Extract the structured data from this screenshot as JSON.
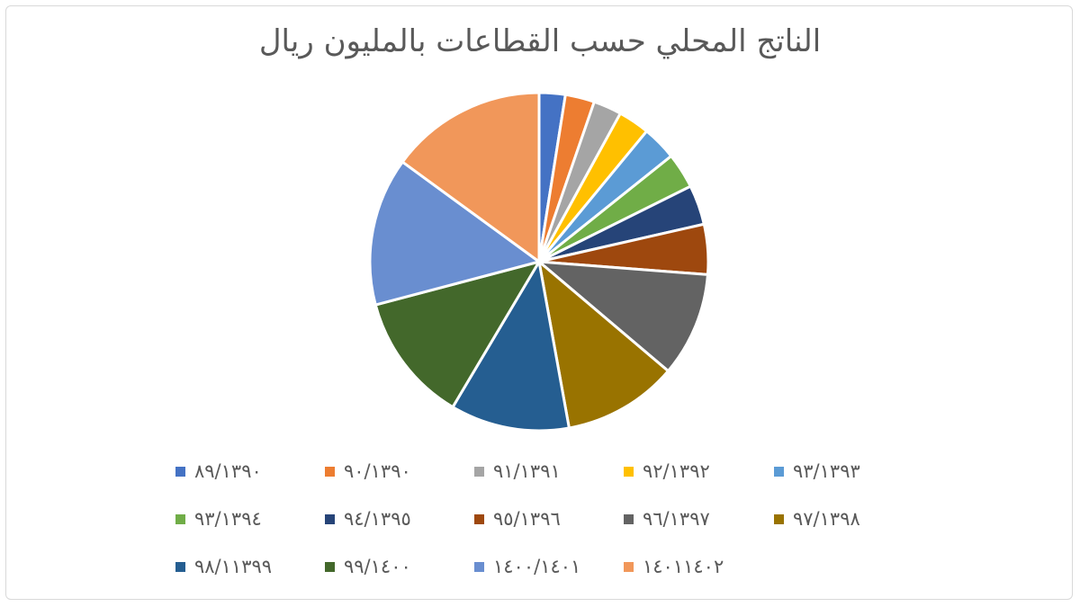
{
  "chart_data": {
    "type": "pie",
    "title": "الناتج المحلي حسب القطاعات بالمليون ريال",
    "legend_position": "bottom",
    "categories": [
      "٨٩/١٣٩٠",
      "٩٠/١٣٩٠",
      "٩١/١٣٩١",
      "٩٢/١٣٩٢",
      "٩٣/١٣٩٣",
      "٩٣/١٣٩٤",
      "٩٤/١٣٩٥",
      "٩٥/١٣٩٦",
      "٩٦/١٣٩٧",
      "٩٧/١٣٩٨",
      "٩٨/١١٣٩٩",
      "٩٩/١٤٠٠",
      "١٤٠٠/١٤٠١",
      "١٤٠١١٤٠٢"
    ],
    "values": [
      2.5,
      2.8,
      2.7,
      3.0,
      3.3,
      3.4,
      3.8,
      4.8,
      10.0,
      11.0,
      11.4,
      12.4,
      14.2,
      15.0
    ],
    "colors": [
      "#4472C4",
      "#ED7D31",
      "#A5A5A5",
      "#FFC000",
      "#5B9BD5",
      "#70AD47",
      "#264478",
      "#9E480E",
      "#636363",
      "#997300",
      "#255E91",
      "#43682B",
      "#698ED0",
      "#F1975A"
    ]
  }
}
